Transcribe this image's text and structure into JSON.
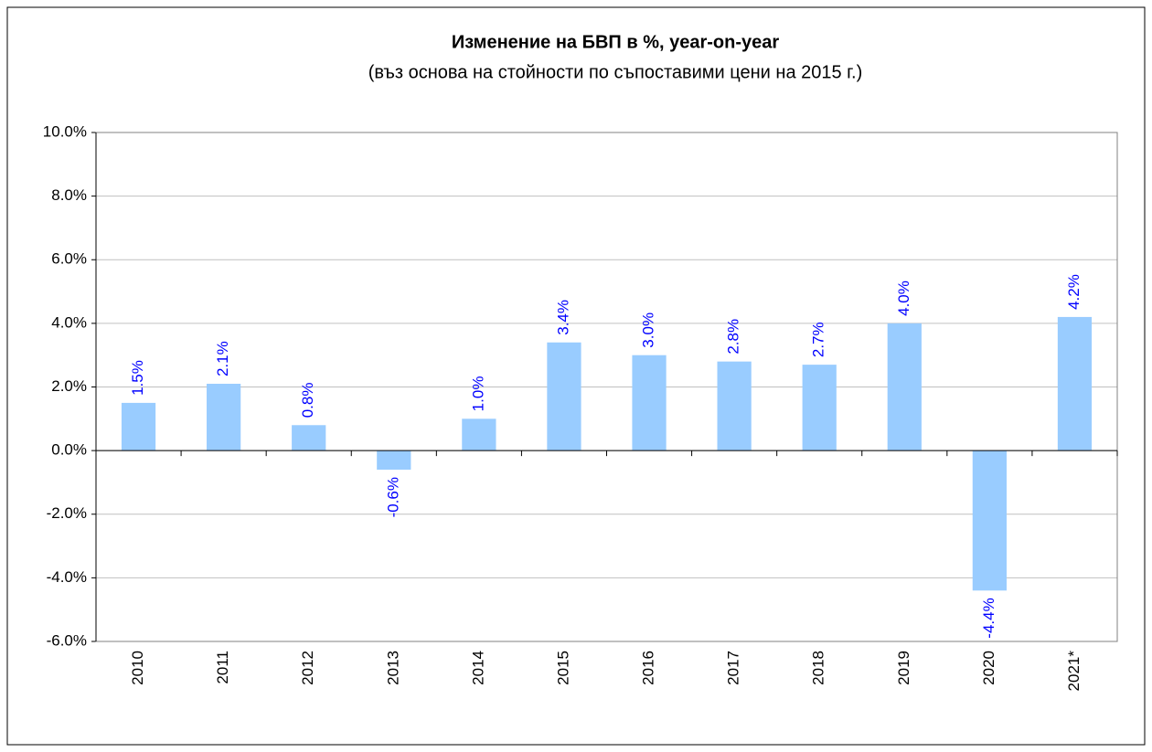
{
  "chart_data": {
    "type": "bar",
    "title": "Изменение на БВП в %, year-on-year",
    "subtitle": "(въз основа на стойности по съпоставими цени на 2015 г.)",
    "categories": [
      "2010",
      "2011",
      "2012",
      "2013",
      "2014",
      "2015",
      "2016",
      "2017",
      "2018",
      "2019",
      "2020",
      "2021*"
    ],
    "values": [
      1.5,
      2.1,
      0.8,
      -0.6,
      1.0,
      3.4,
      3.0,
      2.8,
      2.7,
      4.0,
      -4.4,
      4.2
    ],
    "value_labels": [
      "1.5%",
      "2.1%",
      "0.8%",
      "-0.6%",
      "1.0%",
      "3.4%",
      "3.0%",
      "2.8%",
      "2.7%",
      "4.0%",
      "-4.4%",
      "4.2%"
    ],
    "color": "#99ccff",
    "label_color": "#0000ff",
    "ylim": [
      -6,
      10
    ],
    "yticks": [
      {
        "value": -6,
        "label": "-6.0%"
      },
      {
        "value": -4,
        "label": "-4.0%"
      },
      {
        "value": -2,
        "label": "-2.0%"
      },
      {
        "value": 0,
        "label": "0.0%"
      },
      {
        "value": 2,
        "label": "2.0%"
      },
      {
        "value": 4,
        "label": "4.0%"
      },
      {
        "value": 6,
        "label": "6.0%"
      },
      {
        "value": 8,
        "label": "8.0%"
      },
      {
        "value": 10,
        "label": "10.0%"
      }
    ],
    "grid": true
  }
}
